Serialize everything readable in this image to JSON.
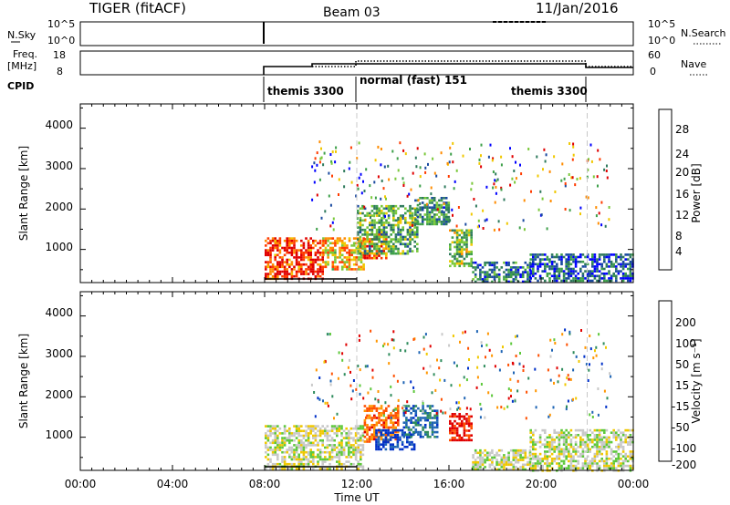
{
  "header": {
    "title": "TIGER (fitACF)",
    "beam": "Beam 03",
    "date": "11/Jan/2016"
  },
  "top_panels": {
    "nsky_label": "N.Sky",
    "nsky_ticks": [
      "10^5",
      "10^0"
    ],
    "nsearch_label": "N.Search",
    "freq_label_line1": "Freq.",
    "freq_label_line2": "[MHz]",
    "freq_ticks": [
      "18",
      "8"
    ],
    "nave_label": "Nave",
    "nave_ticks": [
      "60",
      "0"
    ],
    "cpid_label": "CPID",
    "cpid_segments": [
      {
        "name": "themis 3300",
        "start_hour": 8,
        "end_hour": 12
      },
      {
        "name": "normal (fast) 151",
        "start_hour": 12,
        "end_hour": 22
      },
      {
        "name": "themis 3300",
        "start_hour": 22,
        "end_hour": 24
      }
    ]
  },
  "power_panel": {
    "ylabel": "Slant Range [km]",
    "yticks": [
      "4000",
      "3000",
      "2000",
      "1000"
    ],
    "colorbar_label": "Power [dB]",
    "colorbar_ticks": [
      "28",
      "24",
      "20",
      "16",
      "12",
      "8",
      "4"
    ],
    "colors": [
      "#0000ff",
      "#1a4aa0",
      "#2e7a5c",
      "#3ea04a",
      "#7ac83a",
      "#f0c800",
      "#ff8c00",
      "#ff3c00",
      "#e00000"
    ]
  },
  "velocity_panel": {
    "ylabel": "Slant Range [km]",
    "yticks": [
      "4000",
      "3000",
      "2000",
      "1000"
    ],
    "colorbar_label": "Velocity [m s⁻¹]",
    "colorbar_ticks": [
      "200",
      "100",
      "50",
      "15",
      "-15",
      "-50",
      "-100",
      "-200"
    ],
    "colors": [
      "#0030c8",
      "#1e64b4",
      "#2e8c5c",
      "#5cc83a",
      "#c8c8c8",
      "#f0c800",
      "#ff9600",
      "#ff5000",
      "#e00000"
    ]
  },
  "xaxis": {
    "ticks": [
      "00:00",
      "04:00",
      "08:00",
      "12:00",
      "16:00",
      "20:00",
      "00:00"
    ],
    "label": "Time UT"
  },
  "chart_data": {
    "type": "heatmap",
    "title": "TIGER (fitACF)",
    "x_range_hours": [
      0,
      24
    ],
    "y_range_km": [
      180,
      4600
    ],
    "panels": [
      {
        "name": "Power",
        "unit": "dB",
        "color_range": [
          0,
          30
        ],
        "regions": [
          {
            "t0": 8.0,
            "t1": 10.5,
            "r0": 300,
            "r1": 1300,
            "value": 26
          },
          {
            "t0": 10.5,
            "t1": 12.3,
            "r0": 500,
            "r1": 1300,
            "value": 20
          },
          {
            "t0": 12.3,
            "t1": 13.3,
            "r0": 800,
            "r1": 1400,
            "value": 24
          },
          {
            "t0": 12.0,
            "t1": 14.6,
            "r0": 900,
            "r1": 2100,
            "value": 12
          },
          {
            "t0": 14.5,
            "t1": 16.0,
            "r0": 1600,
            "r1": 2300,
            "value": 10
          },
          {
            "t0": 16.0,
            "t1": 17.0,
            "r0": 600,
            "r1": 1500,
            "value": 14
          },
          {
            "t0": 17.0,
            "t1": 19.5,
            "r0": 200,
            "r1": 700,
            "value": 8
          },
          {
            "t0": 19.5,
            "t1": 24.0,
            "r0": 200,
            "r1": 900,
            "value": 6
          }
        ]
      },
      {
        "name": "Velocity",
        "unit": "m s-1",
        "color_range": [
          -200,
          200
        ],
        "regions": [
          {
            "t0": 8.0,
            "t1": 12.3,
            "r0": 200,
            "r1": 1300,
            "value": 0
          },
          {
            "t0": 12.3,
            "t1": 13.8,
            "r0": 900,
            "r1": 1800,
            "value": 120
          },
          {
            "t0": 12.8,
            "t1": 14.5,
            "r0": 700,
            "r1": 1200,
            "value": -180
          },
          {
            "t0": 14.0,
            "t1": 15.5,
            "r0": 1000,
            "r1": 1800,
            "value": -120
          },
          {
            "t0": 16.0,
            "t1": 17.0,
            "r0": 900,
            "r1": 1600,
            "value": 180
          },
          {
            "t0": 17.0,
            "t1": 19.5,
            "r0": 200,
            "r1": 700,
            "value": 0
          },
          {
            "t0": 19.5,
            "t1": 24.0,
            "r0": 200,
            "r1": 1200,
            "value": 0
          }
        ]
      }
    ]
  }
}
